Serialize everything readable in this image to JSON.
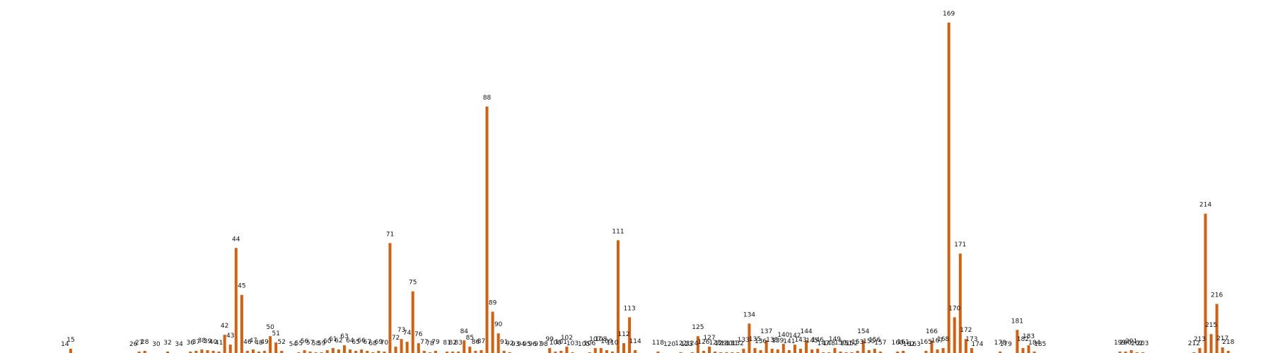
{
  "chart_data": {
    "type": "bar",
    "title": "",
    "xlabel": "",
    "ylabel": "",
    "grid": false,
    "legend": "none",
    "bar_color": "#d4600f",
    "label_color": "#111111",
    "ylim": [
      0,
      480
    ],
    "x_range": [
      0,
      230
    ],
    "categories": [
      "14",
      "15",
      "26",
      "27",
      "28",
      "30",
      "32",
      "34",
      "36",
      "37",
      "38",
      "39",
      "40",
      "41",
      "42",
      "43",
      "44",
      "45",
      "46",
      "47",
      "48",
      "49",
      "50",
      "51",
      "52",
      "54",
      "55",
      "56",
      "57",
      "58",
      "59",
      "60",
      "61",
      "62",
      "63",
      "64",
      "65",
      "66",
      "67",
      "68",
      "69",
      "70",
      "71",
      "72",
      "73",
      "74",
      "75",
      "76",
      "77",
      "78",
      "79",
      "81",
      "82",
      "83",
      "84",
      "85",
      "86",
      "87",
      "88",
      "89",
      "90",
      "91",
      "92",
      "93",
      "94",
      "95",
      "96",
      "97",
      "98",
      "99",
      "100",
      "101",
      "102",
      "103",
      "105",
      "106",
      "107",
      "108",
      "109",
      "110",
      "111",
      "112",
      "113",
      "114",
      "118",
      "120",
      "122",
      "123",
      "124",
      "125",
      "126",
      "127",
      "128",
      "129",
      "130",
      "131",
      "132",
      "133",
      "134",
      "135",
      "136",
      "137",
      "138",
      "139",
      "140",
      "141",
      "142",
      "143",
      "144",
      "145",
      "146",
      "147",
      "148",
      "149",
      "150",
      "151",
      "152",
      "153",
      "154",
      "155",
      "156",
      "157",
      "160",
      "161",
      "162",
      "163",
      "165",
      "166",
      "167",
      "168",
      "169",
      "170",
      "171",
      "172",
      "173",
      "174",
      "178",
      "179",
      "181",
      "182",
      "183",
      "184",
      "185",
      "199",
      "200",
      "201",
      "202",
      "203",
      "212",
      "213",
      "214",
      "215",
      "216",
      "217",
      "218"
    ],
    "values": [
      0,
      6,
      0,
      2,
      3,
      0,
      2,
      0,
      2,
      3,
      5,
      4,
      3,
      2,
      26,
      12,
      150,
      83,
      3,
      5,
      2,
      3,
      24,
      15,
      3,
      0,
      1,
      4,
      2,
      1,
      1,
      4,
      7,
      5,
      11,
      5,
      3,
      5,
      3,
      1,
      3,
      2,
      157,
      9,
      20,
      16,
      88,
      14,
      3,
      1,
      3,
      2,
      2,
      2,
      18,
      9,
      3,
      4,
      352,
      59,
      28,
      3,
      1,
      0,
      0,
      0,
      0,
      0,
      0,
      7,
      2,
      3,
      9,
      1,
      0,
      1,
      7,
      7,
      4,
      2,
      161,
      14,
      51,
      4,
      2,
      0,
      1,
      0,
      1,
      24,
      3,
      9,
      2,
      1,
      1,
      1,
      1,
      6,
      42,
      7,
      4,
      18,
      6,
      5,
      13,
      4,
      12,
      6,
      18,
      5,
      6,
      1,
      1,
      7,
      2,
      1,
      1,
      3,
      18,
      4,
      6,
      2,
      2,
      3,
      0,
      0,
      3,
      18,
      5,
      7,
      472,
      51,
      142,
      20,
      7,
      0,
      2,
      0,
      33,
      7,
      11,
      2,
      0,
      2,
      2,
      4,
      1,
      1,
      1,
      7,
      199,
      27,
      70,
      8,
      3
    ]
  }
}
